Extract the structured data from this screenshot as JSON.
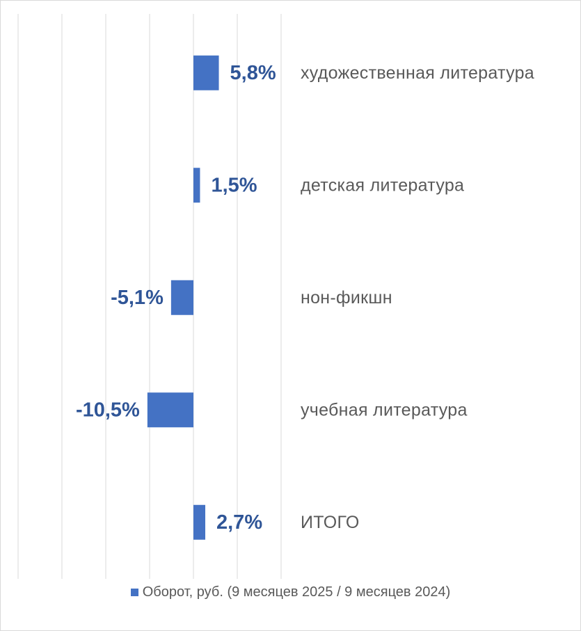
{
  "chart_data": {
    "type": "bar",
    "orientation": "horizontal",
    "categories": [
      "художественная литература",
      "детская литература",
      "нон-фикшн",
      "учебная литература",
      "ИТОГО"
    ],
    "series": [
      {
        "name": "Оборот, руб. (9 месяцев 2025 / 9 месяцев 2024)",
        "values": [
          5.8,
          1.5,
          -5.1,
          -10.5,
          2.7
        ],
        "value_labels": [
          "5,8%",
          "1,5%",
          "-5,1%",
          "-10,5%",
          "2,7%"
        ]
      }
    ],
    "xlim": [
      -40,
      20
    ],
    "grid": true,
    "legend_position": "bottom",
    "colors": {
      "bar": "#4472c4",
      "value_label": "#2f5597",
      "category_label": "#595959",
      "grid": "#d9d9d9"
    }
  }
}
